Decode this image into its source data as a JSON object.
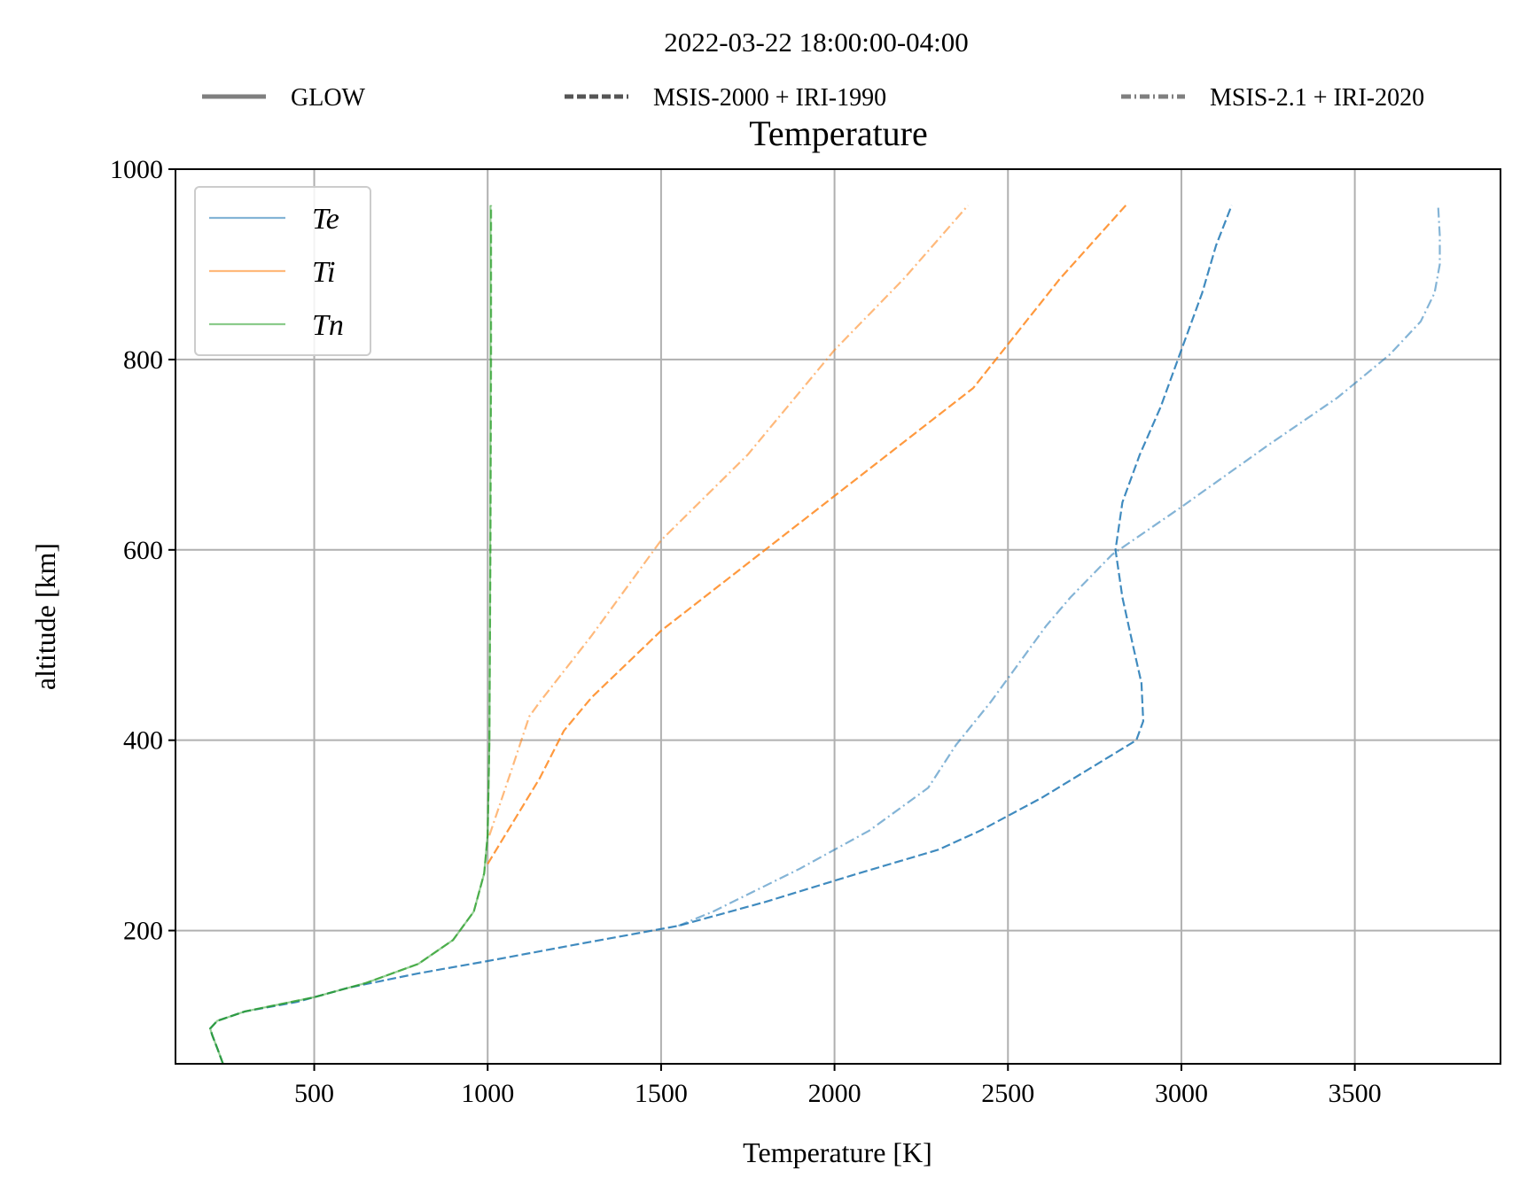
{
  "chart_data": {
    "type": "line",
    "suptitle": "2022-03-22 18:00:00-04:00",
    "title": "Temperature",
    "xlabel": "Temperature [K]",
    "ylabel": "altitude [km]",
    "xlim": [
      100,
      3920
    ],
    "ylim": [
      60,
      1000
    ],
    "xticks": [
      500,
      1000,
      1500,
      2000,
      2500,
      3000,
      3500
    ],
    "yticks": [
      200,
      400,
      600,
      800,
      1000
    ],
    "grid": true,
    "model_legend": {
      "placement": "top",
      "entries": [
        {
          "label": "GLOW",
          "style": "solid"
        },
        {
          "label": "MSIS-2000 + IRI-1990",
          "style": "dashed"
        },
        {
          "label": "MSIS-2.1 + IRI-2020",
          "style": "dashdot"
        }
      ]
    },
    "variable_legend": {
      "placement": "upper left",
      "entries": [
        {
          "label": "Te",
          "color": "#1f77b4"
        },
        {
          "label": "Ti",
          "color": "#ff7f0e"
        },
        {
          "label": "Tn",
          "color": "#2ca02c"
        }
      ]
    },
    "series": [
      {
        "variable": "Te",
        "model": "MSIS-2000 + IRI-1990",
        "style": "dashed",
        "color": "#1f77b4",
        "opacity": 0.85,
        "points": [
          [
            237,
            60
          ],
          [
            222,
            75
          ],
          [
            206,
            90
          ],
          [
            200,
            97
          ],
          [
            220,
            105
          ],
          [
            300,
            115
          ],
          [
            450,
            125
          ],
          [
            600,
            140
          ],
          [
            800,
            155
          ],
          [
            1000,
            168
          ],
          [
            1250,
            185
          ],
          [
            1550,
            205
          ],
          [
            1800,
            230
          ],
          [
            2050,
            258
          ],
          [
            2300,
            285
          ],
          [
            2420,
            305
          ],
          [
            2600,
            340
          ],
          [
            2780,
            380
          ],
          [
            2870,
            400
          ],
          [
            2890,
            420
          ],
          [
            2885,
            460
          ],
          [
            2860,
            500
          ],
          [
            2830,
            550
          ],
          [
            2810,
            600
          ],
          [
            2830,
            650
          ],
          [
            2880,
            700
          ],
          [
            2940,
            750
          ],
          [
            3000,
            810
          ],
          [
            3060,
            870
          ],
          [
            3100,
            920
          ],
          [
            3145,
            962
          ]
        ]
      },
      {
        "variable": "Te",
        "model": "MSIS-2.1 + IRI-2020",
        "style": "dashdot",
        "color": "#1f77b4",
        "opacity": 0.55,
        "points": [
          [
            1550,
            205
          ],
          [
            1650,
            220
          ],
          [
            1900,
            265
          ],
          [
            2100,
            305
          ],
          [
            2270,
            350
          ],
          [
            2350,
            395
          ],
          [
            2450,
            440
          ],
          [
            2530,
            480
          ],
          [
            2610,
            520
          ],
          [
            2680,
            550
          ],
          [
            2800,
            595
          ],
          [
            3000,
            645
          ],
          [
            3250,
            710
          ],
          [
            3450,
            760
          ],
          [
            3600,
            805
          ],
          [
            3690,
            840
          ],
          [
            3730,
            870
          ],
          [
            3745,
            900
          ],
          [
            3745,
            930
          ],
          [
            3740,
            962
          ]
        ]
      },
      {
        "variable": "Ti",
        "model": "MSIS-2000 + IRI-1990",
        "style": "dashed",
        "color": "#ff7f0e",
        "opacity": 0.8,
        "points": [
          [
            1000,
            270
          ],
          [
            1050,
            300
          ],
          [
            1150,
            360
          ],
          [
            1220,
            410
          ],
          [
            1300,
            445
          ],
          [
            1500,
            515
          ],
          [
            1800,
            600
          ],
          [
            2100,
            685
          ],
          [
            2400,
            770
          ],
          [
            2650,
            885
          ],
          [
            2840,
            962
          ]
        ]
      },
      {
        "variable": "Ti",
        "model": "MSIS-2.1 + IRI-2020",
        "style": "dashdot",
        "color": "#ff7f0e",
        "opacity": 0.55,
        "points": [
          [
            1005,
            300
          ],
          [
            1070,
            370
          ],
          [
            1120,
            425
          ],
          [
            1150,
            440
          ],
          [
            1300,
            510
          ],
          [
            1500,
            610
          ],
          [
            1750,
            700
          ],
          [
            2000,
            810
          ],
          [
            2200,
            885
          ],
          [
            2385,
            962
          ]
        ]
      },
      {
        "variable": "Tn",
        "model": "GLOW",
        "style": "solid",
        "color": "#2ca02c",
        "opacity": 0.5,
        "points": [
          [
            237,
            60
          ],
          [
            222,
            75
          ],
          [
            206,
            90
          ],
          [
            200,
            97
          ],
          [
            220,
            105
          ],
          [
            300,
            115
          ],
          [
            500,
            130
          ],
          [
            650,
            145
          ],
          [
            800,
            165
          ],
          [
            900,
            190
          ],
          [
            960,
            220
          ],
          [
            990,
            260
          ],
          [
            1000,
            300
          ],
          [
            1005,
            400
          ],
          [
            1007,
            600
          ],
          [
            1008,
            800
          ],
          [
            1008,
            962
          ]
        ]
      },
      {
        "variable": "Tn",
        "model": "MSIS-2000 + IRI-1990",
        "style": "dashed",
        "color": "#2ca02c",
        "opacity": 0.7,
        "points": [
          [
            237,
            60
          ],
          [
            222,
            75
          ],
          [
            206,
            90
          ],
          [
            200,
            97
          ],
          [
            220,
            105
          ],
          [
            300,
            115
          ],
          [
            500,
            130
          ],
          [
            650,
            145
          ],
          [
            800,
            165
          ],
          [
            900,
            190
          ],
          [
            960,
            220
          ],
          [
            990,
            260
          ],
          [
            1000,
            300
          ],
          [
            1005,
            400
          ],
          [
            1008,
            600
          ],
          [
            1010,
            800
          ],
          [
            1010,
            962
          ]
        ]
      }
    ]
  }
}
